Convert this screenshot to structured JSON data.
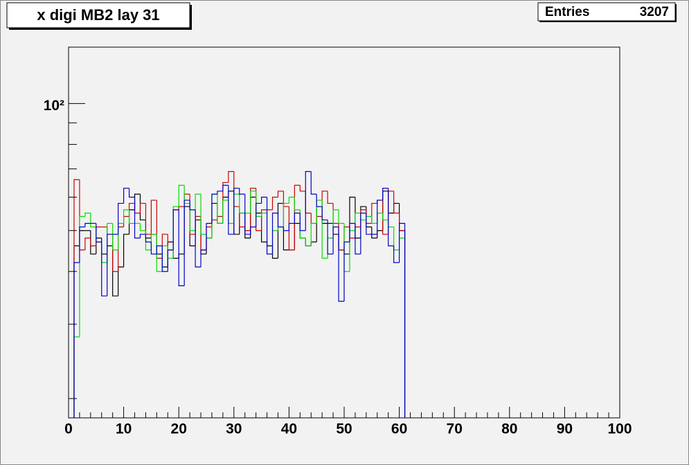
{
  "chart_data": {
    "type": "histogram",
    "title": "x digi MB2 lay 31",
    "stats": {
      "label": "Entries",
      "value": 3207
    },
    "bins": [
      1,
      2,
      3,
      4,
      5,
      6,
      7,
      8,
      9,
      10,
      11,
      12,
      13,
      14,
      15,
      16,
      17,
      18,
      19,
      20,
      21,
      22,
      23,
      24,
      25,
      26,
      27,
      28,
      29,
      30,
      31,
      32,
      33,
      34,
      35,
      36,
      37,
      38,
      39,
      40,
      41,
      42,
      43,
      44,
      45,
      46,
      47,
      48,
      49,
      50,
      51,
      52,
      53,
      54,
      55,
      56,
      57,
      58,
      59,
      60,
      61
    ],
    "series": [
      {
        "color": "#000000",
        "values": [
          46,
          50,
          50,
          44,
          48,
          44,
          46,
          35,
          41,
          49,
          56,
          61,
          53,
          48,
          49,
          44,
          41,
          47,
          43,
          44,
          57,
          46,
          53,
          44,
          48,
          58,
          52,
          60,
          62,
          49,
          55,
          48,
          60,
          55,
          47,
          46,
          43,
          58,
          45,
          45,
          52,
          48,
          46,
          47,
          57,
          52,
          52,
          49,
          45,
          44,
          60,
          48,
          57,
          51,
          48,
          50,
          62,
          55,
          58,
          50
        ]
      },
      {
        "color": "#cc0000",
        "values": [
          66,
          45,
          48,
          46,
          51,
          51,
          49,
          40,
          51,
          54,
          58,
          55,
          58,
          49,
          59,
          43,
          49,
          45,
          56,
          57,
          61,
          49,
          54,
          45,
          51,
          53,
          54,
          65,
          69,
          57,
          51,
          50,
          63,
          50,
          56,
          56,
          60,
          62,
          57,
          45,
          64,
          62,
          55,
          52,
          54,
          62,
          58,
          52,
          45,
          51,
          48,
          51,
          56,
          52,
          58,
          59,
          49,
          62,
          55,
          50
        ]
      },
      {
        "color": "#00dd00",
        "values": [
          28,
          54,
          55,
          51,
          47,
          42,
          52,
          45,
          52,
          56,
          52,
          52,
          50,
          45,
          49,
          40,
          46,
          43,
          57,
          64,
          58,
          50,
          61,
          49,
          48,
          61,
          52,
          59,
          52,
          61,
          55,
          55,
          62,
          54,
          55,
          44,
          50,
          51,
          58,
          60,
          56,
          48,
          46,
          52,
          59,
          43,
          48,
          56,
          52,
          40,
          50,
          55,
          53,
          54,
          52,
          55,
          53,
          51,
          45,
          48
        ]
      },
      {
        "color": "#0000cc",
        "values": [
          42,
          51,
          52,
          52,
          47,
          35,
          49,
          49,
          58,
          63,
          60,
          48,
          49,
          47,
          44,
          46,
          40,
          45,
          56,
          37,
          59,
          56,
          41,
          45,
          52,
          61,
          62,
          64,
          49,
          63,
          61,
          49,
          51,
          58,
          60,
          44,
          55,
          51,
          50,
          52,
          55,
          50,
          69,
          61,
          57,
          53,
          44,
          51,
          34,
          47,
          52,
          44,
          55,
          49,
          49,
          59,
          63,
          46,
          42,
          52
        ]
      }
    ],
    "xlim": [
      0,
      100
    ],
    "xticks": [
      0,
      10,
      20,
      30,
      40,
      50,
      60,
      70,
      80,
      90,
      100
    ],
    "xminor_ticks": [
      2,
      4,
      6,
      8,
      12,
      14,
      16,
      18,
      22,
      24,
      26,
      28,
      32,
      34,
      36,
      38,
      42,
      44,
      46,
      48,
      52,
      54,
      56,
      58,
      62,
      64,
      66,
      68,
      72,
      74,
      76,
      78,
      82,
      84,
      86,
      88,
      92,
      94,
      96,
      98
    ],
    "ylim": [
      18,
      136
    ],
    "log_y": true,
    "yticks": [
      {
        "value": 100,
        "label": "10²"
      }
    ],
    "yminor_ticks": [
      20,
      30,
      40,
      50,
      60,
      70,
      80,
      90
    ]
  }
}
